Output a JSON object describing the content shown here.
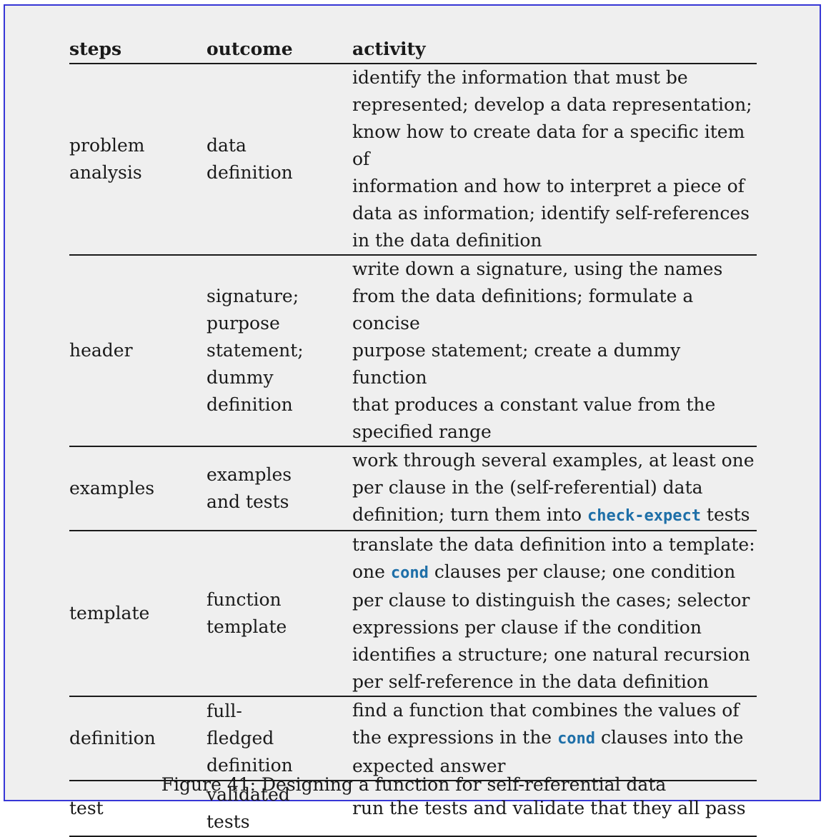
{
  "table": {
    "headers": {
      "steps": "steps",
      "outcome": "outcome",
      "activity": "activity"
    },
    "rows": [
      {
        "step": [
          "problem",
          "analysis"
        ],
        "outcome": [
          "data",
          "definition"
        ],
        "activity": [
          "identify the information that must be",
          "represented; develop a data representation;",
          "know how to create data for a specific item of",
          "information and how to interpret a piece of",
          "data as information; identify self-references",
          "in the data definition"
        ]
      },
      {
        "step": [
          "header"
        ],
        "outcome": [
          "signature;",
          "purpose",
          "statement;",
          "dummy",
          "definition"
        ],
        "activity": [
          "write down a signature, using the names",
          "from the data definitions; formulate a concise",
          "purpose statement; create a dummy function",
          "that produces a constant value from the",
          "specified range"
        ]
      },
      {
        "step": [
          "examples"
        ],
        "outcome": [
          "examples",
          "and tests"
        ],
        "activity_lines": [
          "work through several examples, at least one",
          "per clause in the (self-referential) data"
        ],
        "activity_last_pre": "definition; turn them into ",
        "activity_last_code": "check-expect",
        "activity_last_post": " tests"
      },
      {
        "step": [
          "template"
        ],
        "outcome": [
          "function",
          "template"
        ],
        "activity_first": "translate the data definition into a template:",
        "activity_second_pre": "one ",
        "activity_second_code": "cond",
        "activity_second_post": " clauses per clause; one condition",
        "activity_rest": [
          "per clause to distinguish the cases; selector",
          "expressions per clause if the condition",
          "identifies a structure; one natural recursion",
          "per self-reference in the data definition"
        ]
      },
      {
        "step": [
          "definition"
        ],
        "outcome": [
          "full-",
          "fledged",
          "definition"
        ],
        "activity_first": "find a function that combines the values of",
        "activity_second_pre": "the expressions in the ",
        "activity_second_code": "cond",
        "activity_second_post": " clauses into the",
        "activity_last": "expected answer"
      },
      {
        "step": [
          "test"
        ],
        "outcome": [
          "validated",
          "tests"
        ],
        "activity": [
          "run the tests and validate that they all pass"
        ]
      }
    ]
  },
  "caption": "Figure 41: Designing a function for self-referential data"
}
